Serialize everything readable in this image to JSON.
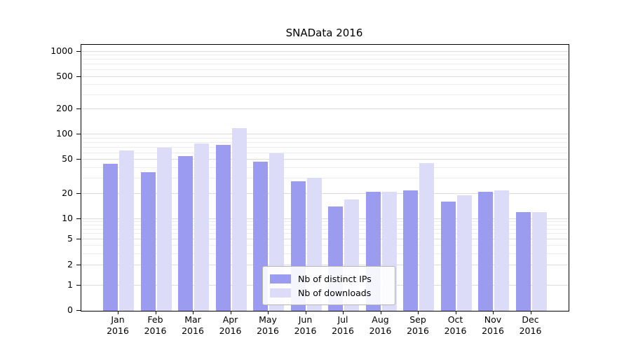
{
  "chart_data": {
    "type": "bar",
    "title": "SNAData 2016",
    "categories": [
      "Jan",
      "Feb",
      "Mar",
      "Apr",
      "May",
      "Jun",
      "Jul",
      "Aug",
      "Sep",
      "Oct",
      "Nov",
      "Dec"
    ],
    "year_label": "2016",
    "series": [
      {
        "name": "Nb of distinct IPs",
        "color": "#9b9bef",
        "values": [
          45,
          36,
          55,
          75,
          48,
          28,
          14,
          21,
          22,
          16,
          21,
          12
        ]
      },
      {
        "name": "Nb of downloads",
        "color": "#dcdcf9",
        "values": [
          65,
          70,
          78,
          120,
          60,
          31,
          17,
          21,
          46,
          19,
          22,
          12
        ]
      }
    ],
    "yticks": [
      0,
      1,
      2,
      5,
      10,
      20,
      50,
      100,
      200,
      500,
      1000
    ],
    "ylim": [
      0,
      1000
    ],
    "yscale": "symlog",
    "grid": true,
    "legend_position": "lower center",
    "colors": {
      "axis": "#000000",
      "grid_major": "#dcdcdc",
      "grid_minor": "#ececec"
    }
  }
}
